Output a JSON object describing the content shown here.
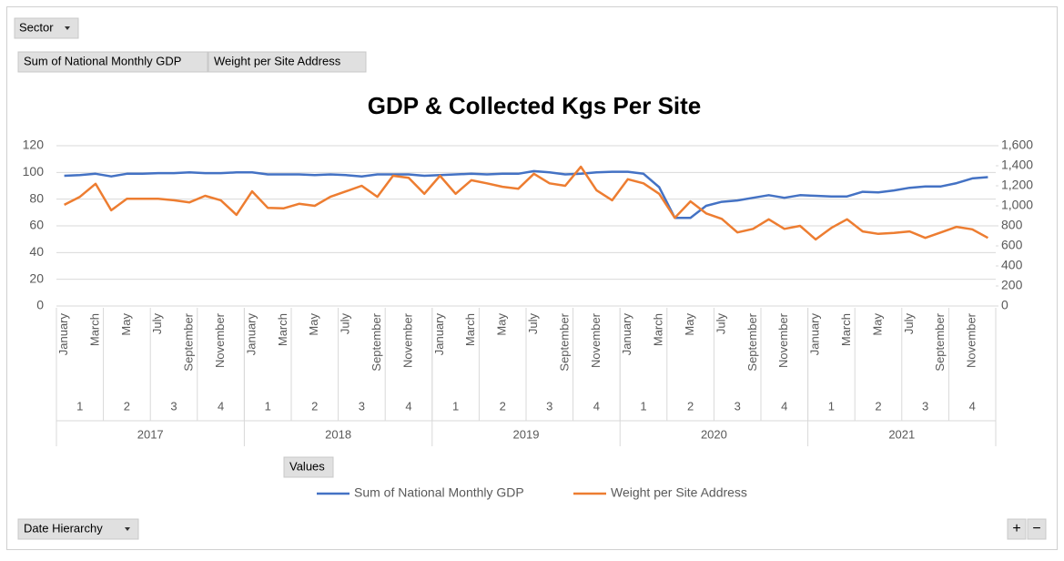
{
  "controls": {
    "sector": "Sector",
    "value_fields": [
      "Sum of National Monthly GDP",
      "Weight per Site Address"
    ],
    "values": "Values",
    "date_hierarchy": "Date Hierarchy",
    "zoom_in": "+",
    "zoom_out": "−"
  },
  "chart_data": {
    "type": "line",
    "title": "GDP & Collected Kgs Per Site",
    "categories": [
      "January",
      null,
      "March",
      null,
      "May",
      null,
      "July",
      null,
      "September",
      null,
      "November",
      null,
      "January",
      null,
      "March",
      null,
      "May",
      null,
      "July",
      null,
      "September",
      null,
      "November",
      null,
      "January",
      null,
      "March",
      null,
      "May",
      null,
      "July",
      null,
      "September",
      null,
      "November",
      null,
      "January",
      null,
      "March",
      null,
      "May",
      null,
      "July",
      null,
      "September",
      null,
      "November",
      null,
      "January",
      null,
      "March",
      null,
      "May",
      null,
      "July",
      null,
      "September",
      null,
      "November",
      null
    ],
    "quarters": [
      "1",
      "2",
      "3",
      "4",
      "1",
      "2",
      "3",
      "4",
      "1",
      "2",
      "3",
      "4",
      "1",
      "2",
      "3",
      "4",
      "1",
      "2",
      "3",
      "4"
    ],
    "years": [
      "2017",
      "2018",
      "2019",
      "2020",
      "2021"
    ],
    "series": [
      {
        "name": "Sum of National Monthly GDP",
        "color": "#4472c4",
        "axis": "y",
        "values": [
          97.5,
          98,
          99,
          97,
          99,
          99,
          99.5,
          99.5,
          100,
          99.5,
          99.5,
          100,
          100,
          98.5,
          98.5,
          98.5,
          98,
          98.5,
          98,
          97,
          98.5,
          98.5,
          98.5,
          97.5,
          98,
          98.5,
          99,
          98.5,
          99,
          99,
          101,
          100,
          98.5,
          99,
          100,
          100.5,
          100.5,
          99,
          89,
          66,
          66,
          75,
          78,
          79,
          81,
          83,
          81,
          83,
          82.5,
          82,
          82,
          85.5,
          85,
          86.5,
          88.5,
          89.5,
          89.5,
          92,
          95.5,
          96.5
        ]
      },
      {
        "name": "Weight per Site Address",
        "color": "#ed7d31",
        "axis": "y2",
        "values": [
          1010,
          1090,
          1220,
          955,
          1070,
          1070,
          1070,
          1055,
          1035,
          1100,
          1055,
          910,
          1145,
          980,
          975,
          1020,
          1000,
          1090,
          1145,
          1200,
          1090,
          1300,
          1280,
          1120,
          1300,
          1120,
          1255,
          1225,
          1190,
          1170,
          1320,
          1225,
          1200,
          1390,
          1155,
          1055,
          1265,
          1225,
          1120,
          880,
          1045,
          925,
          870,
          735,
          770,
          865,
          770,
          800,
          665,
          780,
          865,
          745,
          720,
          730,
          745,
          680,
          735,
          790,
          765,
          680
        ]
      }
    ],
    "ylim": [
      0,
      120
    ],
    "yticks": [
      0,
      20,
      40,
      60,
      80,
      100,
      120
    ],
    "y2lim": [
      0,
      1600
    ],
    "y2ticks": [
      0,
      200,
      400,
      600,
      800,
      {
        "value": 1000,
        "label": "1,000"
      },
      {
        "value": 1200,
        "label": "1,200"
      },
      {
        "value": 1400,
        "label": "1,400"
      },
      {
        "value": 1600,
        "label": "1,600"
      }
    ],
    "grid": true,
    "legend": "bottom"
  }
}
